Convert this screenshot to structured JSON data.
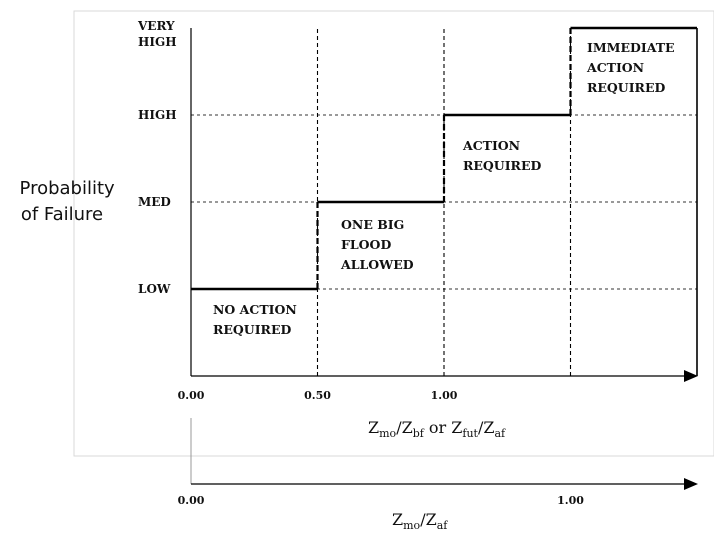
{
  "chart_data": {
    "type": "step",
    "ylabel": [
      "Probability",
      "of Failure"
    ],
    "y_levels": [
      "LOW",
      "MED",
      "HIGH",
      "VERY HIGH"
    ],
    "x_ticks": [
      {
        "value": 0,
        "label": "0.00"
      },
      {
        "value": 0.5,
        "label": "0.50"
      },
      {
        "value": 1.0,
        "label": "1.00"
      }
    ],
    "xlabel": {
      "base1": "Z",
      "sub1": "mo",
      "base2": "/Z",
      "sub2": "bf",
      "or": " or ",
      "base3": "Z",
      "sub3": "fut",
      "base4": "/Z",
      "sub4": "af"
    },
    "steps": [
      {
        "x_start": 0,
        "x_end": 0.5,
        "level": "LOW",
        "label": [
          "NO ACTION",
          "REQUIRED"
        ]
      },
      {
        "x_start": 0.5,
        "x_end": 1.0,
        "level": "MED",
        "label": [
          "ONE BIG",
          "FLOOD",
          "ALLOWED"
        ]
      },
      {
        "x_start": 1.0,
        "x_end": 1.5,
        "level": "HIGH",
        "label": [
          "ACTION",
          "REQUIRED"
        ]
      },
      {
        "x_start": 1.5,
        "x_end": 2.0,
        "level": "VERY HIGH",
        "label": [
          "IMMEDIATE",
          "ACTION",
          "REQUIRED"
        ]
      }
    ],
    "secondary_axis": {
      "ticks": [
        {
          "value": 0,
          "label": "0.00"
        },
        {
          "value": 1.0,
          "label": "1.00"
        }
      ],
      "xlabel": {
        "base1": "Z",
        "sub1": "mo",
        "base2": "/Z",
        "sub2": "af"
      }
    }
  }
}
